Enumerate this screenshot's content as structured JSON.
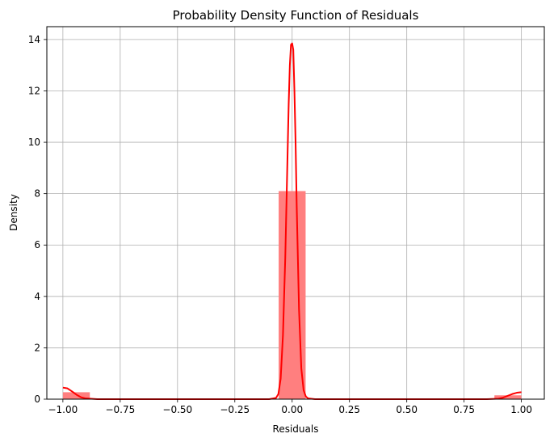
{
  "chart_data": {
    "type": "bar",
    "title": "Probability Density Function of Residuals",
    "xlabel": "Residuals",
    "ylabel": "Density",
    "xlim": [
      -1.07,
      1.1
    ],
    "ylim": [
      0,
      14.5
    ],
    "grid": true,
    "x_ticks": [
      -1.0,
      -0.75,
      -0.5,
      -0.25,
      0.0,
      0.25,
      0.5,
      0.75,
      1.0
    ],
    "x_tick_labels": [
      "−1.00",
      "−0.75",
      "−0.50",
      "−0.25",
      "0.00",
      "0.25",
      "0.50",
      "0.75",
      "1.00"
    ],
    "y_ticks": [
      0,
      2,
      4,
      6,
      8,
      10,
      12,
      14
    ],
    "y_tick_labels": [
      "0",
      "2",
      "4",
      "6",
      "8",
      "10",
      "12",
      "14"
    ],
    "colors": {
      "bar": "#ff7f7f",
      "line": "#ff0000",
      "grid": "#b0b0b0"
    },
    "histogram": {
      "bin_width": 0.1176,
      "bins": [
        {
          "x0": -1.0,
          "x1": -0.8824,
          "density": 0.27
        },
        {
          "x0": -0.0588,
          "x1": 0.0588,
          "density": 8.1
        },
        {
          "x0": 0.8824,
          "x1": 1.0,
          "density": 0.15
        }
      ]
    },
    "kde": {
      "name": "",
      "x": [
        -1.0,
        -0.98,
        -0.96,
        -0.94,
        -0.92,
        -0.9,
        -0.85,
        -0.8,
        -0.1,
        -0.07,
        -0.06,
        -0.05,
        -0.04,
        -0.03,
        -0.02,
        -0.015,
        -0.01,
        -0.005,
        0.0,
        0.005,
        0.01,
        0.015,
        0.02,
        0.03,
        0.04,
        0.05,
        0.06,
        0.07,
        0.1,
        0.8,
        0.85,
        0.9,
        0.92,
        0.94,
        0.96,
        0.98,
        1.0
      ],
      "y": [
        0.45,
        0.42,
        0.3,
        0.17,
        0.07,
        0.03,
        0.0,
        0.0,
        0.0,
        0.05,
        0.2,
        0.8,
        2.5,
        5.5,
        9.5,
        11.5,
        13.0,
        13.8,
        13.85,
        13.6,
        12.0,
        10.0,
        7.5,
        3.5,
        1.2,
        0.35,
        0.1,
        0.03,
        0.0,
        0.0,
        0.0,
        0.02,
        0.06,
        0.13,
        0.2,
        0.25,
        0.27
      ]
    }
  }
}
